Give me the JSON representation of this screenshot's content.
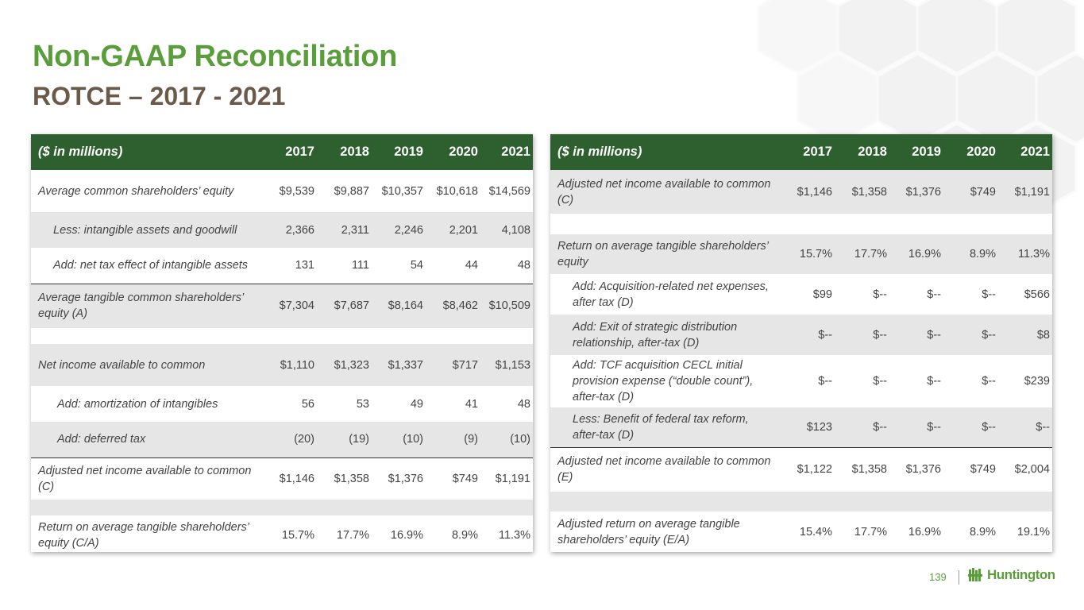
{
  "title": "Non-GAAP Reconciliation",
  "subtitle": "ROTCE – 2017 - 2021",
  "colors": {
    "brand_green": "#5a9e3c",
    "header_green": "#2e5f2e",
    "subtitle_brown": "#6b5a4a",
    "shade": "#e6e6e6"
  },
  "left_table": {
    "header": [
      "($ in millions)",
      "2017",
      "2018",
      "2019",
      "2020",
      "2021"
    ],
    "rows": [
      {
        "label": "Average common shareholders’ equity",
        "values": [
          "$9,539",
          "$9,887",
          "$10,357",
          "$10,618",
          "$14,569"
        ]
      },
      {
        "label": "Less: intangible assets and goodwill",
        "values": [
          "2,366",
          "2,311",
          "2,246",
          "2,201",
          "4,108"
        ]
      },
      {
        "label": "Add: net tax effect of intangible assets",
        "values": [
          "131",
          "111",
          "54",
          "44",
          "48"
        ]
      },
      {
        "label": "Average tangible common shareholders’ equity (A)",
        "values": [
          "$7,304",
          "$7,687",
          "$8,164",
          "$8,462",
          "$10,509"
        ]
      },
      {
        "label": "",
        "values": [
          "",
          "",
          "",
          "",
          ""
        ]
      },
      {
        "label": "Net income available to common",
        "values": [
          "$1,110",
          "$1,323",
          "$1,337",
          "$717",
          "$1,153"
        ]
      },
      {
        "label": "Add: amortization of intangibles",
        "values": [
          "56",
          "53",
          "49",
          "41",
          "48"
        ]
      },
      {
        "label": "Add: deferred tax",
        "values": [
          "(20)",
          "(19)",
          "(10)",
          "(9)",
          "(10)"
        ]
      },
      {
        "label": "Adjusted net income available to common (C)",
        "values": [
          "$1,146",
          "$1,358",
          "$1,376",
          "$749",
          "$1,191"
        ]
      },
      {
        "label": "",
        "values": [
          "",
          "",
          "",
          "",
          ""
        ]
      },
      {
        "label": "Return on average tangible shareholders’ equity (C/A)",
        "values": [
          "15.7%",
          "17.7%",
          "16.9%",
          "8.9%",
          "11.3%"
        ]
      }
    ]
  },
  "right_table": {
    "header": [
      "($ in millions)",
      "2017",
      "2018",
      "2019",
      "2020",
      "2021"
    ],
    "rows": [
      {
        "label": "Adjusted net income available to common (C)",
        "values": [
          "$1,146",
          "$1,358",
          "$1,376",
          "$749",
          "$1,191"
        ]
      },
      {
        "label": "",
        "values": [
          "",
          "",
          "",
          "",
          ""
        ]
      },
      {
        "label": "Return on average tangible shareholders’ equity",
        "values": [
          "15.7%",
          "17.7%",
          "16.9%",
          "8.9%",
          "11.3%"
        ]
      },
      {
        "label": "Add: Acquisition-related net expenses, after tax (D)",
        "values": [
          "$99",
          "$--",
          "$--",
          "$--",
          "$566"
        ]
      },
      {
        "label": "Add: Exit of strategic distribution relationship, after-tax (D)",
        "values": [
          "$--",
          "$--",
          "$--",
          "$--",
          "$8"
        ]
      },
      {
        "label": "Add: TCF acquisition CECL initial provision expense (“double count”), after-tax (D)",
        "values": [
          "$--",
          "$--",
          "$--",
          "$--",
          "$239"
        ]
      },
      {
        "label": "Less: Benefit of federal tax reform, after-tax (D)",
        "values": [
          "$123",
          "$--",
          "$--",
          "$--",
          "$--"
        ]
      },
      {
        "label": "Adjusted net income available to common (E)",
        "values": [
          "$1,122",
          "$1,358",
          "$1,376",
          "$749",
          "$2,004"
        ]
      },
      {
        "label": "",
        "values": [
          "",
          "",
          "",
          "",
          ""
        ]
      },
      {
        "label": "Adjusted return on average tangible shareholders’ equity (E/A)",
        "values": [
          "15.4%",
          "17.7%",
          "16.9%",
          "8.9%",
          "19.1%"
        ]
      }
    ]
  },
  "footer": {
    "page_number": "139",
    "logo_text": "Huntington",
    "logo_icon": "huntington-logo-icon"
  }
}
